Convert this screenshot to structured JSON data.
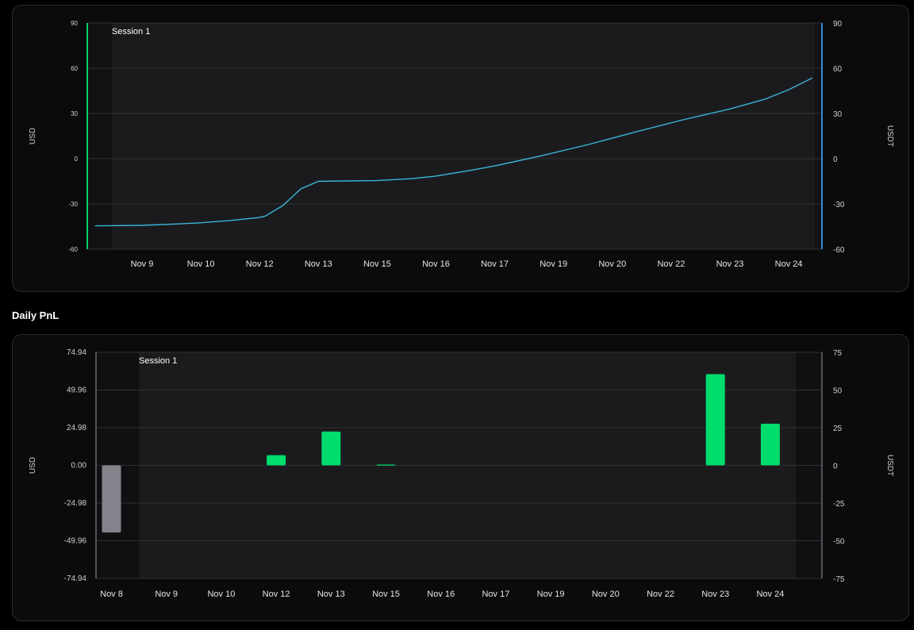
{
  "section_title": "Daily PnL",
  "chart_data": [
    {
      "type": "line",
      "title": "",
      "session_label": "Session 1",
      "ylabel_left": "USD",
      "ylabel_right": "USDT",
      "ylim": [
        -60,
        90
      ],
      "y_ticks": [
        90,
        60,
        30,
        0,
        -30,
        -60
      ],
      "x_tick_labels": [
        "Nov 9",
        "Nov 10",
        "Nov 12",
        "Nov 13",
        "Nov 15",
        "Nov 16",
        "Nov 17",
        "Nov 19",
        "Nov 20",
        "Nov 22",
        "Nov 23",
        "Nov 24"
      ],
      "series": [
        {
          "color": "#3ab6d6",
          "x": [
            -0.8,
            0,
            0.5,
            1,
            1.5,
            2,
            2.1,
            2.4,
            2.7,
            3,
            4,
            4.6,
            5,
            5.6,
            6,
            6.8,
            7.6,
            8.4,
            9.2,
            10,
            10.6,
            11,
            11.4
          ],
          "y": [
            -44.5,
            -44.2,
            -43.5,
            -42.5,
            -41,
            -39,
            -38,
            -31,
            -20,
            -15,
            -14.5,
            -13.2,
            -11.5,
            -7.7,
            -4.8,
            2,
            9.5,
            17.8,
            25.8,
            33,
            39.5,
            45.8,
            53.5
          ]
        }
      ],
      "left_axis_color": "#00d26a",
      "right_axis_color": "#3a86d6"
    },
    {
      "type": "bar",
      "title": "",
      "session_label": "Session 1",
      "ylabel_left": "USD",
      "ylabel_right": "USDT",
      "ylim": [
        -74.94,
        74.94
      ],
      "y_ticks_left": [
        "74.94",
        "49.96",
        "24.98",
        "0.00",
        "-24.98",
        "-49.96",
        "-74.94"
      ],
      "y_ticks_right": [
        "75",
        "50",
        "25",
        "0",
        "-25",
        "-50",
        "-75"
      ],
      "categories": [
        "Nov 8",
        "Nov 9",
        "Nov 10",
        "Nov 12",
        "Nov 13",
        "Nov 15",
        "Nov 16",
        "Nov 17",
        "Nov 19",
        "Nov 20",
        "Nov 22",
        "Nov 23",
        "Nov 24"
      ],
      "values": [
        -44.5,
        0,
        0,
        6.8,
        22.4,
        0.5,
        0,
        0,
        0,
        0,
        0,
        60.5,
        27.6
      ],
      "positive_color": "#00dd6c",
      "negative_color": "#84838b"
    }
  ]
}
